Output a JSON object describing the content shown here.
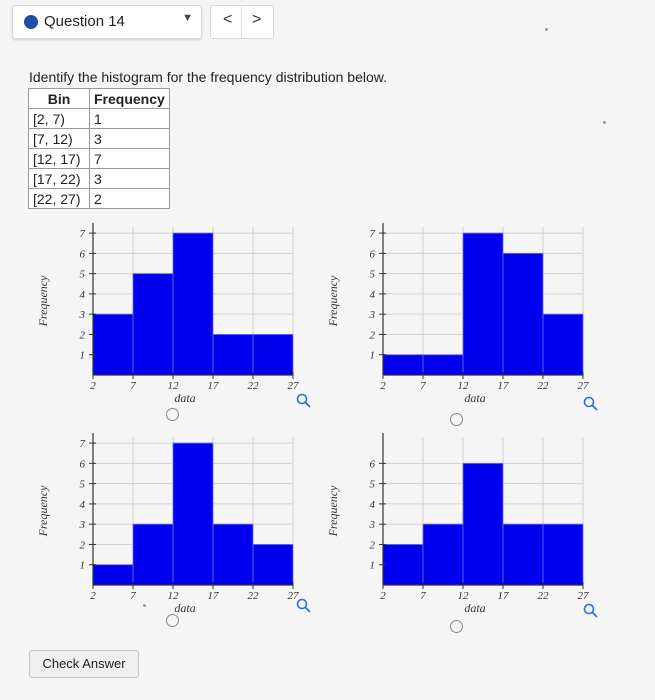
{
  "header": {
    "question_label": "Question 14",
    "caret": "▼",
    "prev": "<",
    "next": ">"
  },
  "prompt": "Identify the histogram for the frequency distribution below.",
  "table": {
    "headers": [
      "Bin",
      "Frequency"
    ],
    "rows": [
      [
        "[2, 7)",
        "1"
      ],
      [
        "[7, 12)",
        "3"
      ],
      [
        "[12, 17)",
        "7"
      ],
      [
        "[17, 22)",
        "3"
      ],
      [
        "[22, 27)",
        "2"
      ]
    ]
  },
  "chart_data": [
    {
      "type": "bar",
      "categories": [
        "[2, 7)",
        "[7, 12)",
        "[12, 17)",
        "[17, 22)",
        "[22, 27)"
      ],
      "values": [
        3,
        5,
        7,
        2,
        2
      ],
      "x_ticks": [
        "2",
        "7",
        "12",
        "17",
        "22",
        "27"
      ],
      "y_ticks": [
        "1",
        "2",
        "3",
        "4",
        "5",
        "6",
        "7"
      ],
      "xlabel": "data",
      "ylabel": "Frequency",
      "ylim": [
        0,
        7
      ],
      "grid": true,
      "bar_color": "#0000ee"
    },
    {
      "type": "bar",
      "categories": [
        "[2, 7)",
        "[7, 12)",
        "[12, 17)",
        "[17, 22)",
        "[22, 27)"
      ],
      "values": [
        1,
        1,
        7,
        6,
        3
      ],
      "x_ticks": [
        "2",
        "7",
        "12",
        "17",
        "22",
        "27"
      ],
      "y_ticks": [
        "1",
        "2",
        "3",
        "4",
        "5",
        "6",
        "7"
      ],
      "xlabel": "data",
      "ylabel": "Frequency",
      "ylim": [
        0,
        7
      ],
      "grid": true,
      "bar_color": "#0000ee"
    },
    {
      "type": "bar",
      "categories": [
        "[2, 7)",
        "[7, 12)",
        "[12, 17)",
        "[17, 22)",
        "[22, 27)"
      ],
      "values": [
        1,
        3,
        7,
        3,
        2
      ],
      "x_ticks": [
        "2",
        "7",
        "12",
        "17",
        "22",
        "27"
      ],
      "y_ticks": [
        "1",
        "2",
        "3",
        "4",
        "5",
        "6",
        "7"
      ],
      "xlabel": "data",
      "ylabel": "Frequency",
      "ylim": [
        0,
        7
      ],
      "grid": true,
      "bar_color": "#0000ee"
    },
    {
      "type": "bar",
      "categories": [
        "[2, 7)",
        "[7, 12)",
        "[12, 17)",
        "[17, 22)",
        "[22, 27)"
      ],
      "values": [
        2,
        3,
        6,
        3,
        3
      ],
      "x_ticks": [
        "2",
        "7",
        "12",
        "17",
        "22",
        "27"
      ],
      "y_ticks": [
        "1",
        "2",
        "3",
        "4",
        "5",
        "6"
      ],
      "xlabel": "data",
      "ylabel": "Frequency",
      "ylim": [
        0,
        6
      ],
      "grid": true,
      "bar_color": "#0000ee"
    }
  ],
  "check_answer_label": "Check Answer",
  "colors": {
    "accent": "#1f4fa6",
    "bar": "#0000ee"
  },
  "icons": {
    "zoom": "magnifier-icon",
    "radio": "radio-option"
  }
}
